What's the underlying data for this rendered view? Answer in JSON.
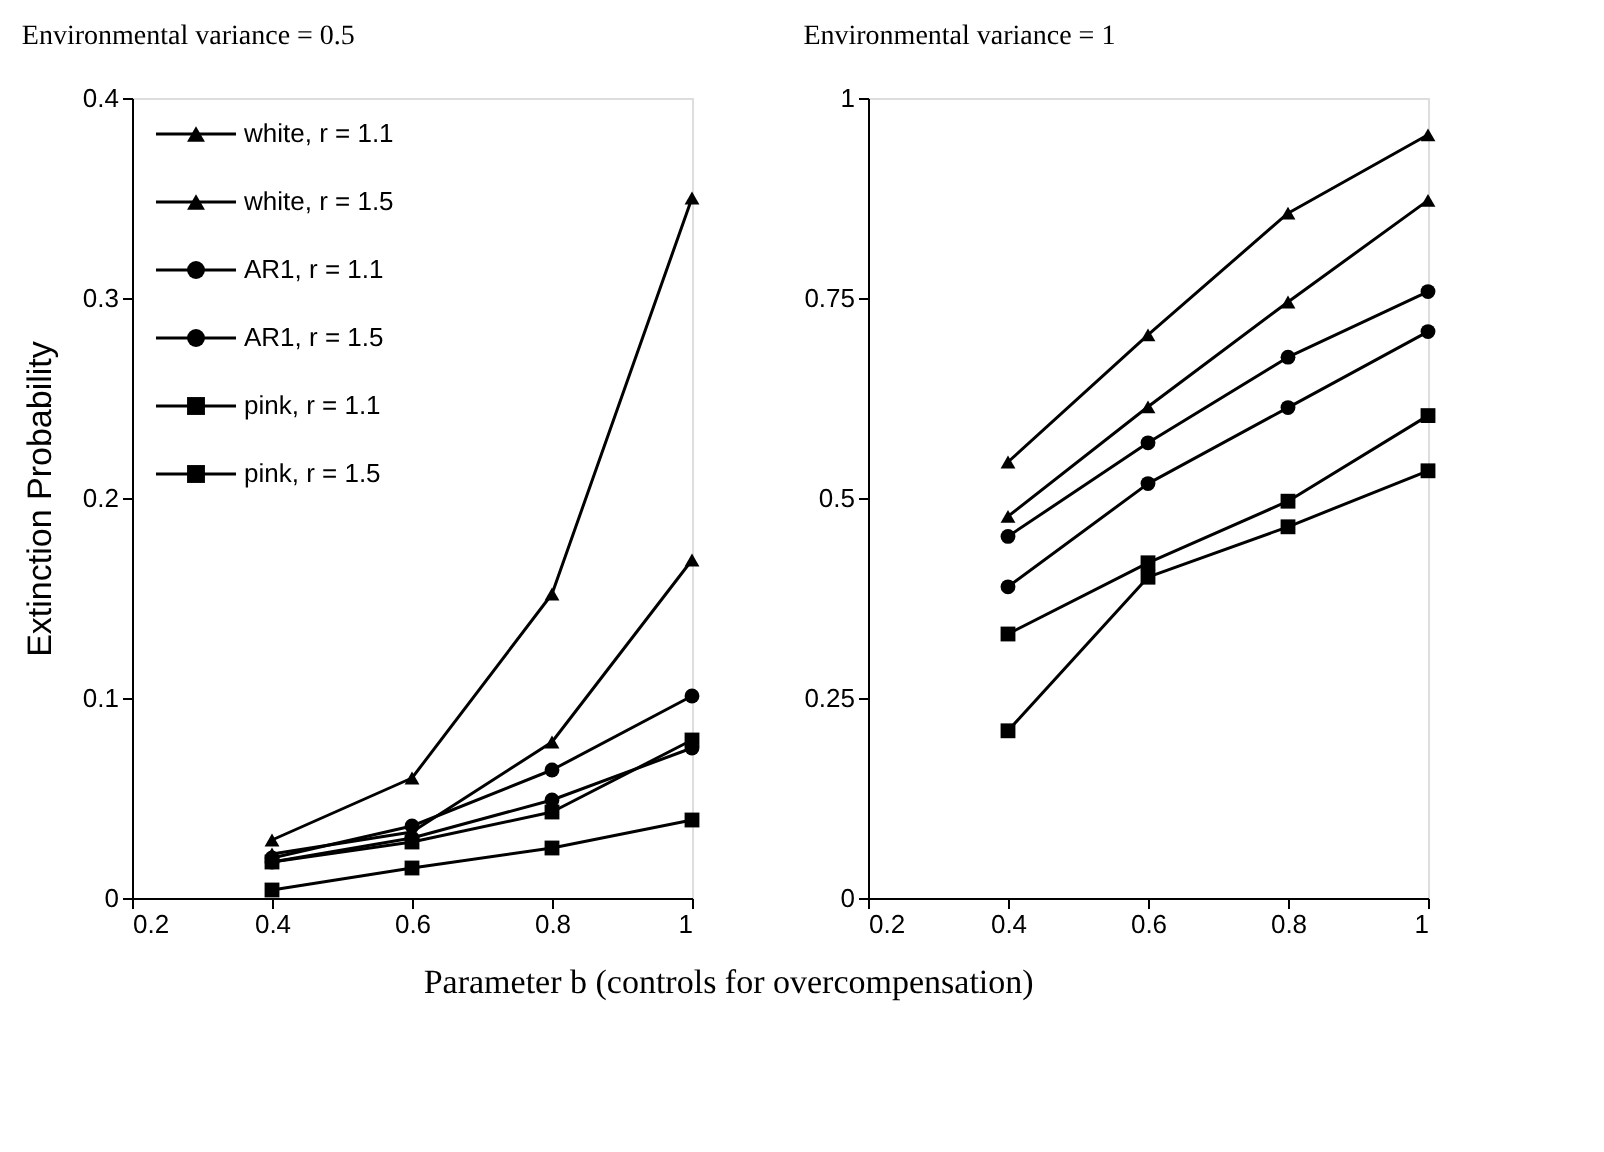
{
  "chart_data": [
    {
      "type": "line",
      "title": "Environmental variance = 0.5",
      "ylabel": "Extinction Probability",
      "xlabel": "Parameter b (controls for overcompensation)",
      "x": [
        0.4,
        0.6,
        0.8,
        1
      ],
      "xlim": [
        0.2,
        1
      ],
      "xticks": [
        0.2,
        0.4,
        0.6,
        0.8,
        1
      ],
      "ylim": [
        0,
        0.4
      ],
      "yticks": [
        0,
        0.1,
        0.2,
        0.3,
        0.4
      ],
      "grid": false,
      "legend": "top left",
      "line_style": "solid",
      "series": [
        {
          "name": "white,   r = 1.1",
          "color": "#000000",
          "marker": "triangle",
          "values": [
            0.022,
            0.033,
            0.078,
            0.169
          ]
        },
        {
          "name": "white,   r = 1.5",
          "color": "#000000",
          "marker": "triangle",
          "values": [
            0.029,
            0.06,
            0.152,
            0.35
          ]
        },
        {
          "name": "AR1,  r = 1.1",
          "color": "#000000",
          "marker": "circle",
          "values": [
            0.018,
            0.03,
            0.049,
            0.075
          ]
        },
        {
          "name": "AR1,  r = 1.5",
          "color": "#000000",
          "marker": "circle",
          "values": [
            0.02,
            0.036,
            0.064,
            0.101
          ]
        },
        {
          "name": "pink,  r = 1.1",
          "color": "#000000",
          "marker": "square",
          "values": [
            0.004,
            0.015,
            0.025,
            0.039
          ]
        },
        {
          "name": "pink,  r = 1.5",
          "color": "#000000",
          "marker": "square",
          "values": [
            0.018,
            0.028,
            0.043,
            0.079
          ]
        }
      ]
    },
    {
      "type": "line",
      "title": "Environmental variance = 1",
      "x": [
        0.4,
        0.6,
        0.8,
        1
      ],
      "xlim": [
        0.2,
        1
      ],
      "xticks": [
        0.2,
        0.4,
        0.6,
        0.8,
        1
      ],
      "ylim": [
        0,
        1
      ],
      "yticks": [
        0,
        0.25,
        0.5,
        0.75,
        1
      ],
      "grid": false,
      "line_style": "solid",
      "series": [
        {
          "color": "#000000",
          "marker": "triangle",
          "values": [
            0.477,
            0.614,
            0.745,
            0.872
          ]
        },
        {
          "color": "#000000",
          "marker": "triangle",
          "values": [
            0.545,
            0.704,
            0.856,
            0.954
          ]
        },
        {
          "color": "#000000",
          "marker": "circle",
          "values": [
            0.389,
            0.518,
            0.613,
            0.708
          ]
        },
        {
          "color": "#000000",
          "marker": "circle",
          "values": [
            0.452,
            0.569,
            0.676,
            0.758
          ]
        },
        {
          "color": "#000000",
          "marker": "square",
          "values": [
            0.209,
            0.401,
            0.464,
            0.534
          ]
        },
        {
          "color": "#000000",
          "marker": "square",
          "values": [
            0.33,
            0.419,
            0.496,
            0.603
          ]
        }
      ]
    }
  ]
}
